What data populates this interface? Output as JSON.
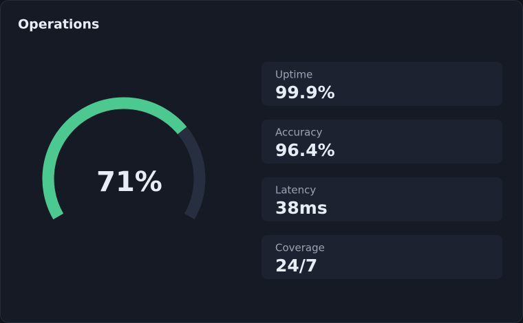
{
  "chart_data": {
    "type": "gauge",
    "title": "Operations",
    "value": 71,
    "value_label": "71%",
    "ylim": [
      0,
      100
    ],
    "color": "#4cc990",
    "track_color": "#272e3f"
  },
  "stats": [
    {
      "label": "Uptime",
      "value": "99.9%"
    },
    {
      "label": "Accuracy",
      "value": "96.4%"
    },
    {
      "label": "Latency",
      "value": "38ms"
    },
    {
      "label": "Coverage",
      "value": "24/7"
    }
  ]
}
